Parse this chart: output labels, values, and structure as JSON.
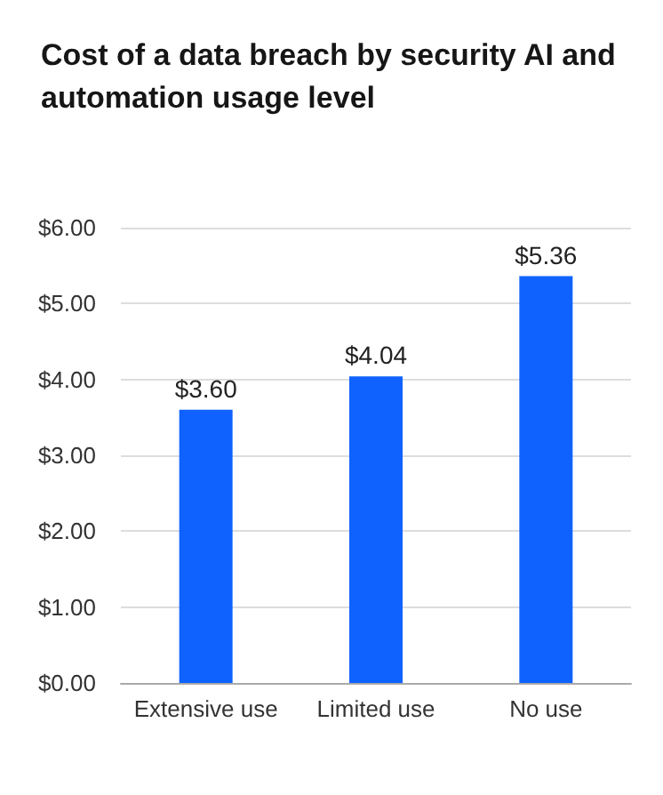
{
  "chart_data": {
    "type": "bar",
    "title": "Cost of a data breach by security AI and automation usage level",
    "categories": [
      "Extensive use",
      "Limited use",
      "No use"
    ],
    "values": [
      3.6,
      4.04,
      5.36
    ],
    "value_labels": [
      "$3.60",
      "$4.04",
      "$5.36"
    ],
    "color": "#0f62fe",
    "ylim": [
      0,
      6
    ],
    "yticks": [
      {
        "value": 0,
        "label": "$0.00"
      },
      {
        "value": 1,
        "label": "$1.00"
      },
      {
        "value": 2,
        "label": "$2.00"
      },
      {
        "value": 3,
        "label": "$3.00"
      },
      {
        "value": 4,
        "label": "$4.00"
      },
      {
        "value": 5,
        "label": "$5.00"
      },
      {
        "value": 6,
        "label": "$6.00"
      }
    ],
    "grid": "y"
  }
}
